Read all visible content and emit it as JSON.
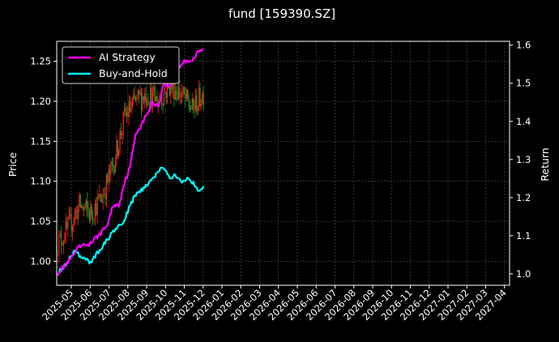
{
  "chart_data": {
    "type": "line",
    "title": "fund [159390.SZ]",
    "ylabel_left": "Price",
    "ylabel_right": "Return",
    "ylim_left": [
      0.97,
      1.275
    ],
    "ylim_right": [
      0.97,
      1.61
    ],
    "yticks_left": [
      "1.00",
      "1.05",
      "1.10",
      "1.15",
      "1.20",
      "1.25"
    ],
    "yticks_right": [
      "1.0",
      "1.1",
      "1.2",
      "1.3",
      "1.4",
      "1.5",
      "1.6"
    ],
    "x_ticks": [
      "2025-05",
      "2025-06",
      "2025-07",
      "2025-08",
      "2025-09",
      "2025-10",
      "2025-11",
      "2025-12",
      "2026-01",
      "2026-02",
      "2026-03",
      "2026-04",
      "2026-05",
      "2026-06",
      "2026-07",
      "2026-08",
      "2026-09",
      "2026-10",
      "2026-11",
      "2026-12",
      "2027-01",
      "2027-02",
      "2027-03",
      "2027-04"
    ],
    "grid": true,
    "legend_position": "top-left",
    "colors": {
      "background": "#000000",
      "up": "#ff2020",
      "down": "#1f9d1f",
      "ai": "#ff00ff",
      "bh": "#00ffff",
      "grid": "#555555"
    },
    "price_anchors": [
      [
        0,
        1.02
      ],
      [
        10,
        1.04
      ],
      [
        20,
        1.07
      ],
      [
        30,
        1.06
      ],
      [
        40,
        1.08
      ],
      [
        50,
        1.12
      ],
      [
        60,
        1.18
      ],
      [
        70,
        1.2
      ],
      [
        80,
        1.21
      ],
      [
        90,
        1.2
      ],
      [
        100,
        1.22
      ],
      [
        110,
        1.21
      ],
      [
        120,
        1.19
      ],
      [
        130,
        1.21
      ]
    ],
    "series": [
      {
        "name": "AI Strategy",
        "axis": "right",
        "anchors": [
          [
            0,
            1.0
          ],
          [
            10,
            1.03
          ],
          [
            20,
            1.07
          ],
          [
            30,
            1.08
          ],
          [
            40,
            1.11
          ],
          [
            45,
            1.13
          ],
          [
            50,
            1.18
          ],
          [
            55,
            1.18
          ],
          [
            60,
            1.24
          ],
          [
            65,
            1.28
          ],
          [
            70,
            1.37
          ],
          [
            75,
            1.39
          ],
          [
            80,
            1.42
          ],
          [
            85,
            1.45
          ],
          [
            90,
            1.44
          ],
          [
            95,
            1.5
          ],
          [
            100,
            1.49
          ],
          [
            105,
            1.52
          ],
          [
            110,
            1.55
          ],
          [
            115,
            1.56
          ],
          [
            120,
            1.56
          ],
          [
            125,
            1.58
          ],
          [
            130,
            1.59
          ]
        ]
      },
      {
        "name": "Buy-and-Hold",
        "axis": "right",
        "anchors": [
          [
            0,
            1.0
          ],
          [
            10,
            1.03
          ],
          [
            15,
            1.06
          ],
          [
            20,
            1.05
          ],
          [
            30,
            1.03
          ],
          [
            40,
            1.07
          ],
          [
            50,
            1.11
          ],
          [
            60,
            1.14
          ],
          [
            65,
            1.18
          ],
          [
            70,
            1.21
          ],
          [
            80,
            1.23
          ],
          [
            90,
            1.27
          ],
          [
            95,
            1.28
          ],
          [
            100,
            1.25
          ],
          [
            105,
            1.26
          ],
          [
            110,
            1.24
          ],
          [
            115,
            1.25
          ],
          [
            120,
            1.24
          ],
          [
            125,
            1.22
          ],
          [
            130,
            1.23
          ]
        ]
      }
    ]
  }
}
